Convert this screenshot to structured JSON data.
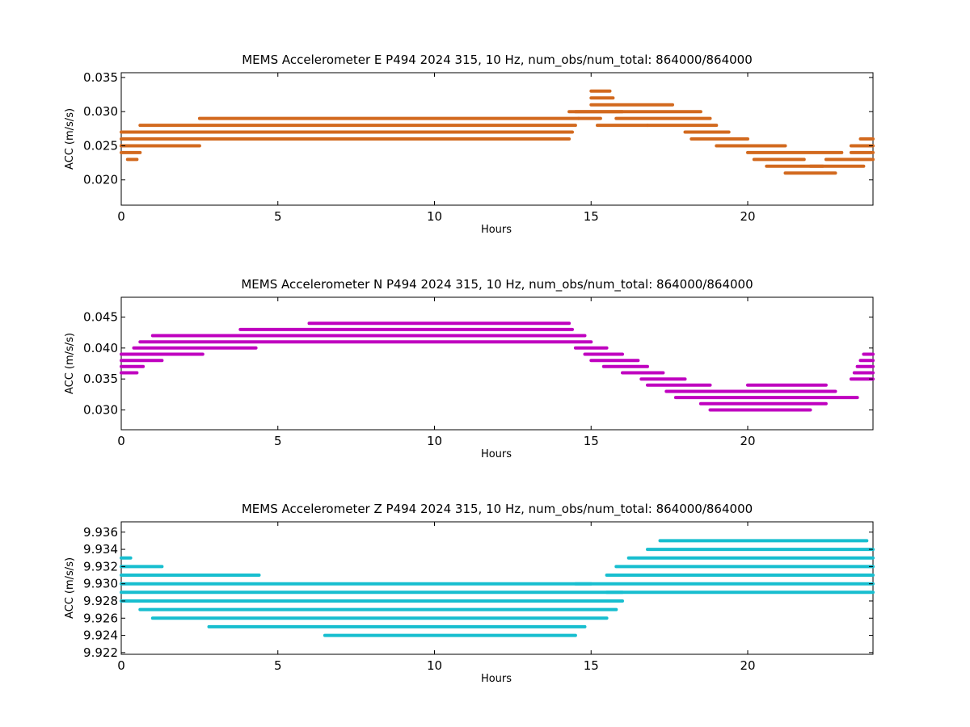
{
  "chart_data": [
    {
      "type": "scatter",
      "title": "MEMS Accelerometer E P494 2024 315, 10 Hz, num_obs/num_total: 864000/864000",
      "xlabel": "Hours",
      "ylabel": "ACC (m/s/s)",
      "xlim": [
        0,
        24
      ],
      "ylim": [
        0.0163,
        0.0357
      ],
      "x_ticks": [
        0,
        5,
        10,
        15,
        20
      ],
      "x_tick_labels": [
        "0",
        "5",
        "10",
        "15",
        "20"
      ],
      "y_ticks": [
        0.02,
        0.025,
        0.03,
        0.035
      ],
      "y_tick_labels": [
        "0.020",
        "0.025",
        "0.030",
        "0.035"
      ],
      "color": "#D2691E",
      "grid": false,
      "series": [
        {
          "values": [
            [
              0.0,
              0.2,
              0.025
            ],
            [
              0.0,
              0.3,
              0.026
            ],
            [
              0.0,
              0.3,
              0.027
            ],
            [
              0.0,
              0.6,
              0.024
            ],
            [
              0.2,
              0.5,
              0.023
            ],
            [
              0.3,
              14.3,
              0.026
            ],
            [
              0.3,
              14.4,
              0.027
            ],
            [
              0.6,
              14.5,
              0.028
            ],
            [
              0.0,
              2.5,
              0.025
            ],
            [
              2.5,
              14.6,
              0.029
            ],
            [
              14.3,
              16.0,
              0.03
            ],
            [
              14.6,
              15.3,
              0.029
            ],
            [
              15.0,
              17.6,
              0.031
            ],
            [
              14.5,
              18.5,
              0.03
            ],
            [
              15.8,
              18.8,
              0.029
            ],
            [
              15.2,
              16.8,
              0.028
            ],
            [
              16.8,
              19.0,
              0.028
            ],
            [
              18.0,
              19.4,
              0.027
            ],
            [
              18.2,
              20.0,
              0.026
            ],
            [
              19.0,
              21.2,
              0.025
            ],
            [
              20.0,
              23.0,
              0.024
            ],
            [
              20.2,
              21.8,
              0.023
            ],
            [
              20.6,
              22.4,
              0.022
            ],
            [
              21.2,
              22.8,
              0.021
            ],
            [
              22.0,
              23.7,
              0.022
            ],
            [
              22.5,
              24.0,
              0.023
            ],
            [
              23.3,
              24.0,
              0.024
            ],
            [
              23.3,
              24.0,
              0.025
            ],
            [
              23.6,
              24.0,
              0.026
            ],
            [
              15.0,
              15.6,
              0.033
            ],
            [
              15.0,
              15.7,
              0.032
            ]
          ]
        }
      ]
    },
    {
      "type": "scatter",
      "title": "MEMS Accelerometer N P494 2024 315, 10 Hz, num_obs/num_total: 864000/864000",
      "xlabel": "Hours",
      "ylabel": "ACC (m/s/s)",
      "xlim": [
        0,
        24
      ],
      "ylim": [
        0.0268,
        0.0482
      ],
      "x_ticks": [
        0,
        5,
        10,
        15,
        20
      ],
      "x_tick_labels": [
        "0",
        "5",
        "10",
        "15",
        "20"
      ],
      "y_ticks": [
        0.03,
        0.035,
        0.04,
        0.045
      ],
      "y_tick_labels": [
        "0.030",
        "0.035",
        "0.040",
        "0.045"
      ],
      "color": "#BF00BF",
      "grid": false,
      "series": [
        {
          "values": [
            [
              0.0,
              0.5,
              0.036
            ],
            [
              0.0,
              0.7,
              0.037
            ],
            [
              0.0,
              1.3,
              0.038
            ],
            [
              0.0,
              2.6,
              0.039
            ],
            [
              0.4,
              4.3,
              0.04
            ],
            [
              0.6,
              15.0,
              0.041
            ],
            [
              1.0,
              14.8,
              0.042
            ],
            [
              3.8,
              14.4,
              0.043
            ],
            [
              6.0,
              14.3,
              0.044
            ],
            [
              14.5,
              15.5,
              0.04
            ],
            [
              14.8,
              16.0,
              0.039
            ],
            [
              15.0,
              16.5,
              0.038
            ],
            [
              15.4,
              16.8,
              0.037
            ],
            [
              16.0,
              17.3,
              0.036
            ],
            [
              16.6,
              18.0,
              0.035
            ],
            [
              16.8,
              18.8,
              0.034
            ],
            [
              17.4,
              22.8,
              0.033
            ],
            [
              17.7,
              23.5,
              0.032
            ],
            [
              18.5,
              22.5,
              0.031
            ],
            [
              18.8,
              22.0,
              0.03
            ],
            [
              20.0,
              22.5,
              0.034
            ],
            [
              23.3,
              24.0,
              0.035
            ],
            [
              23.4,
              24.0,
              0.036
            ],
            [
              23.5,
              24.0,
              0.037
            ],
            [
              23.6,
              24.0,
              0.038
            ],
            [
              23.7,
              24.0,
              0.039
            ]
          ]
        }
      ]
    },
    {
      "type": "scatter",
      "title": "MEMS Accelerometer Z P494 2024 315, 10 Hz, num_obs/num_total: 864000/864000",
      "xlabel": "Hours",
      "ylabel": "ACC (m/s/s)",
      "xlim": [
        0,
        24
      ],
      "ylim": [
        9.9218,
        9.9372
      ],
      "x_ticks": [
        0,
        5,
        10,
        15,
        20
      ],
      "x_tick_labels": [
        "0",
        "5",
        "10",
        "15",
        "20"
      ],
      "y_ticks": [
        9.922,
        9.924,
        9.926,
        9.928,
        9.93,
        9.932,
        9.934,
        9.936
      ],
      "y_tick_labels": [
        "9.922",
        "9.924",
        "9.926",
        "9.928",
        "9.930",
        "9.932",
        "9.934",
        "9.936"
      ],
      "color": "#17BECF",
      "grid": false,
      "series": [
        {
          "values": [
            [
              0.0,
              0.3,
              9.933
            ],
            [
              0.0,
              1.3,
              9.932
            ],
            [
              0.0,
              4.4,
              9.931
            ],
            [
              0.0,
              15.0,
              9.93
            ],
            [
              0.0,
              16.0,
              9.929
            ],
            [
              0.0,
              16.0,
              9.928
            ],
            [
              0.6,
              15.8,
              9.927
            ],
            [
              1.0,
              15.5,
              9.926
            ],
            [
              2.8,
              14.8,
              9.925
            ],
            [
              6.5,
              14.5,
              9.924
            ],
            [
              14.5,
              24.0,
              9.93
            ],
            [
              15.5,
              24.0,
              9.929
            ],
            [
              15.5,
              24.0,
              9.931
            ],
            [
              15.8,
              24.0,
              9.932
            ],
            [
              16.2,
              24.0,
              9.933
            ],
            [
              16.8,
              24.0,
              9.934
            ],
            [
              17.2,
              23.8,
              9.935
            ]
          ]
        }
      ]
    }
  ]
}
